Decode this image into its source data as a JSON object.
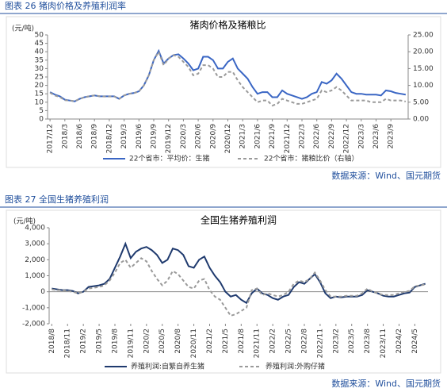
{
  "captions": [
    "图表 26 猪肉价格及养殖利润率",
    "图表 27 全国生猪养殖利润"
  ],
  "sources": [
    "数据来源：Wind、国元期货",
    "数据来源：Wind、国元期货"
  ],
  "chart_data": [
    {
      "type": "line",
      "title": "猪肉价格及猪粮比",
      "y_label": "(元/吨)",
      "categories": [
        "2017/12",
        null,
        null,
        "2018/3",
        null,
        null,
        "2018/6",
        null,
        null,
        "2018/9",
        null,
        null,
        "2018/12",
        null,
        null,
        "2019/3",
        null,
        null,
        "2019/6",
        null,
        null,
        "2019/9",
        null,
        null,
        "2019/12",
        null,
        null,
        "2020/3",
        null,
        null,
        "2020/6",
        null,
        null,
        "2020/9",
        null,
        null,
        "2020/12",
        null,
        null,
        "2021/3",
        null,
        null,
        "2021/6",
        null,
        null,
        "2021/9",
        null,
        null,
        "2021/12",
        null,
        null,
        "2022/3",
        null,
        null,
        "2022/6",
        null,
        null,
        "2022/9",
        null,
        null,
        "2022/12",
        null,
        null,
        "2023/3",
        null,
        null,
        "2023/6",
        null,
        null,
        "2023/9",
        null,
        null,
        null
      ],
      "series": [
        {
          "name": "22个省市：平均价：生猪",
          "color": "#3a66c4",
          "line_style": "solid",
          "axis": "y",
          "values": [
            16,
            14.5,
            13.5,
            11.5,
            11,
            10.5,
            12,
            13,
            13.5,
            14,
            13.5,
            13.5,
            13.5,
            13.5,
            12,
            14,
            15,
            15.5,
            16.5,
            20,
            26,
            35,
            40.5,
            33,
            36,
            38,
            38.5,
            36,
            33,
            29,
            30,
            37,
            37,
            35,
            30,
            30,
            34,
            36,
            30,
            27,
            24,
            19,
            15,
            16,
            16,
            13,
            13,
            17,
            15,
            14,
            13,
            12,
            13,
            15,
            16,
            22,
            21,
            23,
            27,
            24,
            20,
            16,
            15,
            15,
            14.5,
            14.5,
            14.5,
            14,
            17,
            16.5,
            15.5,
            15,
            14.5
          ]
        },
        {
          "name": "22个省市：猪粮比价（右轴）",
          "color": "#9a9a9a",
          "line_style": "dashed",
          "axis": "y2",
          "values": [
            7.8,
            7,
            6.5,
            5.6,
            5.5,
            5.3,
            6,
            6.5,
            6.8,
            7,
            6.8,
            6.7,
            6.7,
            6.7,
            6,
            7,
            7.5,
            7.7,
            8.2,
            10,
            13,
            17.5,
            20,
            16,
            18,
            19,
            18.5,
            17,
            15.5,
            13,
            13.5,
            16,
            16,
            15,
            12.5,
            12.5,
            14,
            14,
            11.5,
            9.5,
            8,
            6.5,
            5,
            5.5,
            5.5,
            4,
            4.5,
            6,
            5.5,
            5,
            4.5,
            4.5,
            5,
            5.5,
            6,
            8.5,
            8,
            8.5,
            9.5,
            8.5,
            7,
            5.5,
            5.5,
            5.5,
            5.5,
            5,
            5,
            5,
            6,
            5.5,
            5.5,
            5.5,
            5.2
          ]
        }
      ],
      "ylim": [
        0,
        50
      ],
      "yticks": [
        0,
        5,
        10,
        15,
        20,
        25,
        30,
        35,
        40,
        45,
        50
      ],
      "y2lim": [
        0,
        25
      ],
      "y2ticks": [
        {
          "value": 0,
          "label": "0.00"
        },
        {
          "value": 5,
          "label": "5.00"
        },
        {
          "value": 10,
          "label": "10.00"
        },
        {
          "value": 15,
          "label": "15.00"
        },
        {
          "value": 20,
          "label": "20.00"
        },
        {
          "value": 25,
          "label": "25.00"
        }
      ]
    },
    {
      "type": "line",
      "title": "全国生猪养殖利润",
      "y_label": "(元/吨)",
      "categories": [
        "2018/8",
        null,
        null,
        "2018/11",
        null,
        null,
        "2019/2",
        null,
        null,
        "2019/5",
        null,
        null,
        "2019/8",
        null,
        null,
        "2019/11",
        null,
        null,
        "2020/2",
        null,
        null,
        "2020/5",
        null,
        null,
        "2020/8",
        null,
        null,
        "2020/11",
        null,
        null,
        "2021/2",
        null,
        null,
        "2021/5",
        null,
        null,
        "2021/8",
        null,
        null,
        "2021/11",
        null,
        null,
        "2022/2",
        null,
        null,
        "2022/5",
        null,
        null,
        "2022/8",
        null,
        null,
        "2022/11",
        null,
        null,
        "2023/2",
        null,
        null,
        "2023/5",
        null,
        null,
        "2023/8",
        null,
        null,
        "2023/11",
        null,
        null,
        "2024/2",
        null,
        null,
        "2024/5",
        null,
        null
      ],
      "series": [
        {
          "name": "养殖利润:自繁自养生猪",
          "color": "#1f3a6e",
          "line_style": "solid",
          "axis": "y",
          "values": [
            200,
            150,
            100,
            100,
            50,
            -100,
            0,
            300,
            350,
            400,
            500,
            800,
            1500,
            2200,
            3000,
            2100,
            2500,
            2700,
            2800,
            2600,
            2300,
            1800,
            2000,
            2700,
            2600,
            2300,
            1600,
            1500,
            2000,
            2200,
            1500,
            1000,
            600,
            0,
            -300,
            -200,
            -500,
            -700,
            -100,
            200,
            -100,
            -200,
            -400,
            -500,
            -300,
            -200,
            300,
            600,
            500,
            800,
            1100,
            600,
            -100,
            -400,
            -300,
            -350,
            -300,
            -300,
            -300,
            -200,
            100,
            0,
            -100,
            -250,
            -300,
            -300,
            -200,
            -100,
            -50,
            300,
            400,
            500
          ]
        },
        {
          "name": "养殖利润:外购仔猪",
          "color": "#9a9a9a",
          "line_style": "dashed",
          "axis": "y",
          "values": [
            150,
            100,
            100,
            50,
            0,
            -100,
            0,
            200,
            250,
            300,
            400,
            700,
            1200,
            1800,
            2000,
            1500,
            1800,
            2100,
            1900,
            1300,
            800,
            400,
            700,
            1300,
            1100,
            700,
            300,
            200,
            700,
            800,
            100,
            -300,
            -500,
            -1000,
            -1500,
            -1400,
            -1200,
            -1000,
            100,
            200,
            -200,
            -100,
            -200,
            -300,
            -200,
            0,
            500,
            700,
            600,
            800,
            1200,
            700,
            100,
            -300,
            -300,
            -300,
            -250,
            -250,
            -250,
            -100,
            200,
            0,
            -100,
            -200,
            -200,
            -200,
            -100,
            0,
            50,
            350,
            400,
            450
          ]
        }
      ],
      "ylim": [
        -2000,
        4000
      ],
      "yticks": [
        {
          "value": -2000,
          "label": "-2,000"
        },
        {
          "value": -1000,
          "label": "-1,000"
        },
        0,
        {
          "value": 1000,
          "label": "1,000"
        },
        {
          "value": 2000,
          "label": "2,000"
        },
        {
          "value": 3000,
          "label": "3,000"
        },
        {
          "value": 4000,
          "label": "4,000"
        }
      ]
    }
  ]
}
